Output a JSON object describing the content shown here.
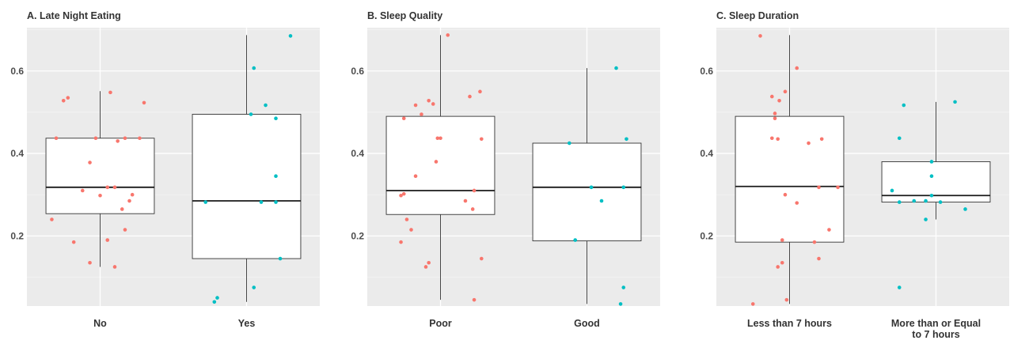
{
  "chart_data": [
    {
      "type": "box",
      "title": "A. Late Night Eating",
      "xlabel": "",
      "ylabel": "",
      "ylim": [
        0.03,
        0.705
      ],
      "yticks": [
        0.2,
        0.4,
        0.6
      ],
      "ytick_labels": [
        "0.2",
        "0.4",
        "0.6"
      ],
      "grid": true,
      "categories": [
        "No",
        "Yes"
      ],
      "point_colors": [
        "#f8766d",
        "#00bfc4"
      ],
      "boxes": [
        {
          "category": "No",
          "whisker_low": 0.125,
          "q1": 0.254,
          "median": 0.318,
          "q3": 0.437,
          "whisker_high": 0.551
        },
        {
          "category": "Yes",
          "whisker_low": 0.04,
          "q1": 0.145,
          "median": 0.285,
          "q3": 0.495,
          "whisker_high": 0.687
        }
      ],
      "points": [
        [
          {
            "dx": -0.25,
            "y": 0.528
          },
          {
            "dx": -0.22,
            "y": 0.535
          },
          {
            "dx": 0.07,
            "y": 0.548
          },
          {
            "dx": 0.3,
            "y": 0.523
          },
          {
            "dx": -0.3,
            "y": 0.437
          },
          {
            "dx": -0.03,
            "y": 0.437
          },
          {
            "dx": 0.12,
            "y": 0.43
          },
          {
            "dx": 0.17,
            "y": 0.437
          },
          {
            "dx": 0.27,
            "y": 0.437
          },
          {
            "dx": -0.07,
            "y": 0.378
          },
          {
            "dx": 0.05,
            "y": 0.318
          },
          {
            "dx": 0.1,
            "y": 0.318
          },
          {
            "dx": -0.12,
            "y": 0.31
          },
          {
            "dx": 0.0,
            "y": 0.298
          },
          {
            "dx": 0.22,
            "y": 0.3
          },
          {
            "dx": 0.2,
            "y": 0.285
          },
          {
            "dx": 0.15,
            "y": 0.265
          },
          {
            "dx": -0.33,
            "y": 0.24
          },
          {
            "dx": 0.17,
            "y": 0.215
          },
          {
            "dx": -0.18,
            "y": 0.185
          },
          {
            "dx": 0.05,
            "y": 0.19
          },
          {
            "dx": -0.07,
            "y": 0.135
          },
          {
            "dx": 0.1,
            "y": 0.125
          }
        ],
        [
          {
            "dx": 0.3,
            "y": 0.685
          },
          {
            "dx": 0.05,
            "y": 0.607
          },
          {
            "dx": 0.13,
            "y": 0.517
          },
          {
            "dx": 0.03,
            "y": 0.495
          },
          {
            "dx": 0.2,
            "y": 0.485
          },
          {
            "dx": 0.2,
            "y": 0.345
          },
          {
            "dx": -0.28,
            "y": 0.282
          },
          {
            "dx": 0.1,
            "y": 0.282
          },
          {
            "dx": 0.2,
            "y": 0.282
          },
          {
            "dx": 0.23,
            "y": 0.145
          },
          {
            "dx": 0.05,
            "y": 0.075
          },
          {
            "dx": -0.2,
            "y": 0.05
          },
          {
            "dx": -0.22,
            "y": 0.04
          }
        ]
      ]
    },
    {
      "type": "box",
      "title": "B. Sleep Quality",
      "xlabel": "",
      "ylabel": "",
      "ylim": [
        0.03,
        0.705
      ],
      "yticks": [
        0.2,
        0.4,
        0.6
      ],
      "ytick_labels": [
        "0.2",
        "0.4",
        "0.6"
      ],
      "grid": true,
      "categories": [
        "Poor",
        "Good"
      ],
      "point_colors": [
        "#f8766d",
        "#00bfc4"
      ],
      "boxes": [
        {
          "category": "Poor",
          "whisker_low": 0.045,
          "q1": 0.252,
          "median": 0.31,
          "q3": 0.49,
          "whisker_high": 0.687
        },
        {
          "category": "Good",
          "whisker_low": 0.035,
          "q1": 0.188,
          "median": 0.318,
          "q3": 0.425,
          "whisker_high": 0.607
        }
      ],
      "points": [
        [
          {
            "dx": 0.05,
            "y": 0.687
          },
          {
            "dx": 0.27,
            "y": 0.55
          },
          {
            "dx": 0.2,
            "y": 0.538
          },
          {
            "dx": -0.08,
            "y": 0.528
          },
          {
            "dx": -0.05,
            "y": 0.52
          },
          {
            "dx": -0.17,
            "y": 0.517
          },
          {
            "dx": -0.13,
            "y": 0.495
          },
          {
            "dx": -0.25,
            "y": 0.485
          },
          {
            "dx": -0.02,
            "y": 0.437
          },
          {
            "dx": 0.0,
            "y": 0.437
          },
          {
            "dx": 0.28,
            "y": 0.435
          },
          {
            "dx": -0.03,
            "y": 0.38
          },
          {
            "dx": -0.17,
            "y": 0.345
          },
          {
            "dx": 0.23,
            "y": 0.31
          },
          {
            "dx": -0.25,
            "y": 0.302
          },
          {
            "dx": -0.27,
            "y": 0.298
          },
          {
            "dx": 0.17,
            "y": 0.285
          },
          {
            "dx": -0.23,
            "y": 0.24
          },
          {
            "dx": 0.22,
            "y": 0.265
          },
          {
            "dx": -0.2,
            "y": 0.215
          },
          {
            "dx": -0.27,
            "y": 0.185
          },
          {
            "dx": 0.28,
            "y": 0.145
          },
          {
            "dx": -0.08,
            "y": 0.135
          },
          {
            "dx": -0.1,
            "y": 0.125
          },
          {
            "dx": 0.23,
            "y": 0.045
          }
        ],
        [
          {
            "dx": 0.2,
            "y": 0.607
          },
          {
            "dx": 0.27,
            "y": 0.435
          },
          {
            "dx": -0.12,
            "y": 0.425
          },
          {
            "dx": 0.03,
            "y": 0.318
          },
          {
            "dx": 0.25,
            "y": 0.318
          },
          {
            "dx": 0.1,
            "y": 0.285
          },
          {
            "dx": -0.08,
            "y": 0.19
          },
          {
            "dx": 0.25,
            "y": 0.075
          },
          {
            "dx": 0.23,
            "y": 0.035
          }
        ]
      ]
    },
    {
      "type": "box",
      "title": "C. Sleep Duration",
      "xlabel": "",
      "ylabel": "",
      "ylim": [
        0.03,
        0.705
      ],
      "yticks": [
        0.2,
        0.4,
        0.6
      ],
      "ytick_labels": [
        "0.2",
        "0.4",
        "0.6"
      ],
      "grid": true,
      "categories": [
        "Less than 7 hours",
        "More than or Equal\nto 7 hours"
      ],
      "point_colors": [
        "#f8766d",
        "#00bfc4"
      ],
      "boxes": [
        {
          "category": "Less than 7 hours",
          "whisker_low": 0.035,
          "q1": 0.185,
          "median": 0.32,
          "q3": 0.49,
          "whisker_high": 0.687
        },
        {
          "category": "More than or Equal to 7 hours",
          "whisker_low": 0.24,
          "q1": 0.282,
          "median": 0.298,
          "q3": 0.38,
          "whisker_high": 0.525
        }
      ],
      "points": [
        [
          {
            "dx": -0.2,
            "y": 0.685
          },
          {
            "dx": 0.05,
            "y": 0.607
          },
          {
            "dx": -0.03,
            "y": 0.55
          },
          {
            "dx": -0.12,
            "y": 0.538
          },
          {
            "dx": -0.07,
            "y": 0.528
          },
          {
            "dx": -0.1,
            "y": 0.497
          },
          {
            "dx": -0.1,
            "y": 0.485
          },
          {
            "dx": -0.12,
            "y": 0.437
          },
          {
            "dx": -0.08,
            "y": 0.435
          },
          {
            "dx": 0.22,
            "y": 0.435
          },
          {
            "dx": 0.13,
            "y": 0.425
          },
          {
            "dx": 0.2,
            "y": 0.318
          },
          {
            "dx": 0.33,
            "y": 0.318
          },
          {
            "dx": -0.03,
            "y": 0.3
          },
          {
            "dx": 0.05,
            "y": 0.28
          },
          {
            "dx": 0.27,
            "y": 0.215
          },
          {
            "dx": -0.05,
            "y": 0.19
          },
          {
            "dx": 0.17,
            "y": 0.185
          },
          {
            "dx": -0.05,
            "y": 0.135
          },
          {
            "dx": 0.2,
            "y": 0.145
          },
          {
            "dx": -0.08,
            "y": 0.125
          },
          {
            "dx": -0.02,
            "y": 0.045
          },
          {
            "dx": -0.25,
            "y": 0.035
          }
        ],
        [
          {
            "dx": -0.22,
            "y": 0.517
          },
          {
            "dx": 0.13,
            "y": 0.525
          },
          {
            "dx": -0.25,
            "y": 0.437
          },
          {
            "dx": -0.03,
            "y": 0.38
          },
          {
            "dx": -0.3,
            "y": 0.31
          },
          {
            "dx": -0.03,
            "y": 0.345
          },
          {
            "dx": -0.03,
            "y": 0.298
          },
          {
            "dx": -0.15,
            "y": 0.285
          },
          {
            "dx": -0.25,
            "y": 0.282
          },
          {
            "dx": -0.07,
            "y": 0.285
          },
          {
            "dx": 0.03,
            "y": 0.282
          },
          {
            "dx": 0.2,
            "y": 0.265
          },
          {
            "dx": -0.07,
            "y": 0.24
          },
          {
            "dx": -0.25,
            "y": 0.075
          }
        ]
      ]
    }
  ]
}
